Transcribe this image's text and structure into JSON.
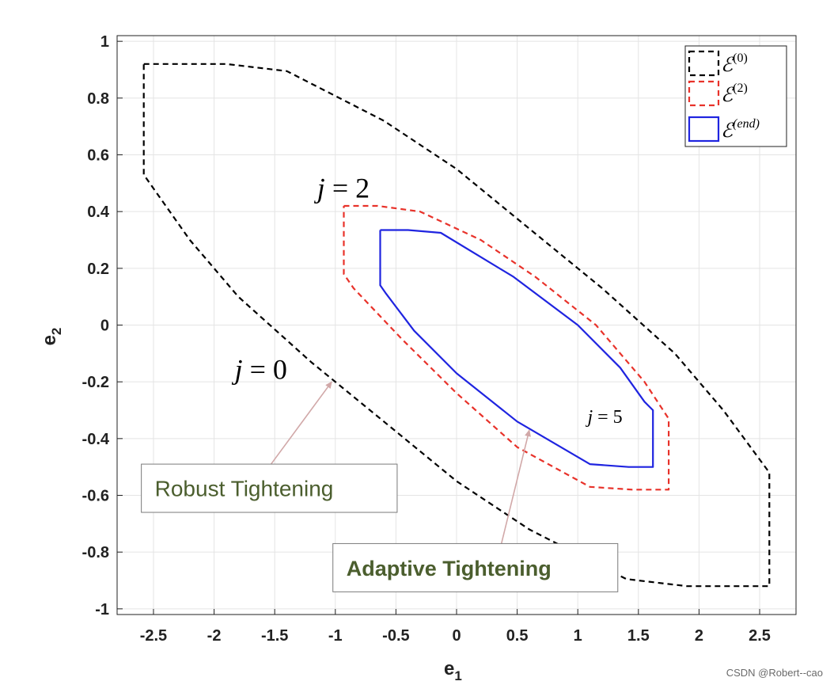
{
  "chart_data": {
    "type": "line",
    "xlabel": "e",
    "xlabel_sub": "1",
    "ylabel": "e",
    "ylabel_sub": "2",
    "xlim": [
      -2.8,
      2.8
    ],
    "ylim": [
      -1.02,
      1.02
    ],
    "xticks": [
      -2.5,
      -2,
      -1.5,
      -1,
      -0.5,
      0,
      0.5,
      1,
      1.5,
      2,
      2.5
    ],
    "xtick_labels": [
      "-2.5",
      "-2",
      "-1.5",
      "-1",
      "-0.5",
      "0",
      "0.5",
      "1",
      "1.5",
      "2",
      "2.5"
    ],
    "yticks": [
      -1,
      -0.8,
      -0.6,
      -0.4,
      -0.2,
      0,
      0.2,
      0.4,
      0.6,
      0.8,
      1
    ],
    "ytick_labels": [
      "-1",
      "-0.8",
      "-0.6",
      "-0.4",
      "-0.2",
      "0",
      "0.2",
      "0.4",
      "0.6",
      "0.8",
      "1"
    ],
    "grid": true,
    "legend_position": "top-right",
    "series": [
      {
        "name": "ℰ(0)",
        "name_base": "ℰ",
        "name_sup": "(0)",
        "color": "#000000",
        "dash": "dashed",
        "x": [
          -2.58,
          -1.9,
          -1.4,
          -0.6,
          0,
          0.6,
          1.2,
          1.8,
          2.2,
          2.58,
          2.58,
          1.9,
          1.4,
          0.6,
          0,
          -0.6,
          -1.2,
          -1.8,
          -2.2,
          -2.58,
          -2.58
        ],
        "y": [
          0.92,
          0.92,
          0.895,
          0.72,
          0.55,
          0.34,
          0.13,
          -0.1,
          -0.3,
          -0.52,
          -0.92,
          -0.92,
          -0.895,
          -0.72,
          -0.55,
          -0.34,
          -0.13,
          0.1,
          0.3,
          0.53,
          0.92
        ]
      },
      {
        "name": "ℰ(2)",
        "name_base": "ℰ",
        "name_sup": "(2)",
        "color": "#e8322a",
        "dash": "dashed",
        "x": [
          -0.93,
          -0.65,
          -0.3,
          0.2,
          0.65,
          1.15,
          1.55,
          1.75,
          1.75,
          1.45,
          1.1,
          0.5,
          0,
          -0.45,
          -0.85,
          -0.93,
          -0.93
        ],
        "y": [
          0.42,
          0.42,
          0.4,
          0.3,
          0.17,
          0,
          -0.2,
          -0.33,
          -0.58,
          -0.58,
          -0.57,
          -0.43,
          -0.24,
          -0.05,
          0.13,
          0.18,
          0.42
        ]
      },
      {
        "name": "ℰ(end)",
        "name_base": "ℰ",
        "name_sup": "(end)",
        "color": "#1f24e0",
        "dash": "solid",
        "x": [
          -0.63,
          -0.4,
          -0.13,
          0.47,
          1.0,
          1.35,
          1.55,
          1.62,
          1.62,
          1.42,
          1.1,
          0.5,
          0,
          -0.35,
          -0.58,
          -0.63,
          -0.63
        ],
        "y": [
          0.335,
          0.335,
          0.325,
          0.17,
          0,
          -0.15,
          -0.27,
          -0.3,
          -0.5,
          -0.5,
          -0.49,
          -0.34,
          -0.17,
          -0.02,
          0.11,
          0.14,
          0.335
        ]
      }
    ],
    "annotations": [
      {
        "id": "j2",
        "text": "j = 2",
        "x": -1.15,
        "y": 0.45
      },
      {
        "id": "j0",
        "text": "j = 0",
        "x": -1.83,
        "y": -0.19
      },
      {
        "id": "j5",
        "text": "j = 5",
        "x": 1.08,
        "y": -0.345
      }
    ],
    "callouts": [
      {
        "id": "robust",
        "text": "Robust Tightening",
        "bold": false,
        "box": [
          -2.6,
          -0.49,
          -0.49,
          -0.66
        ],
        "arrow_from": [
          -1.53,
          -0.49
        ],
        "arrow_to": [
          -1.03,
          -0.2
        ]
      },
      {
        "id": "adaptive",
        "text": "Adaptive Tightening",
        "bold": true,
        "box": [
          -1.02,
          -0.77,
          1.33,
          -0.94
        ],
        "arrow_from": [
          0.37,
          -0.77
        ],
        "arrow_to": [
          0.6,
          -0.37
        ]
      }
    ]
  },
  "watermark": "CSDN @Robert--cao"
}
